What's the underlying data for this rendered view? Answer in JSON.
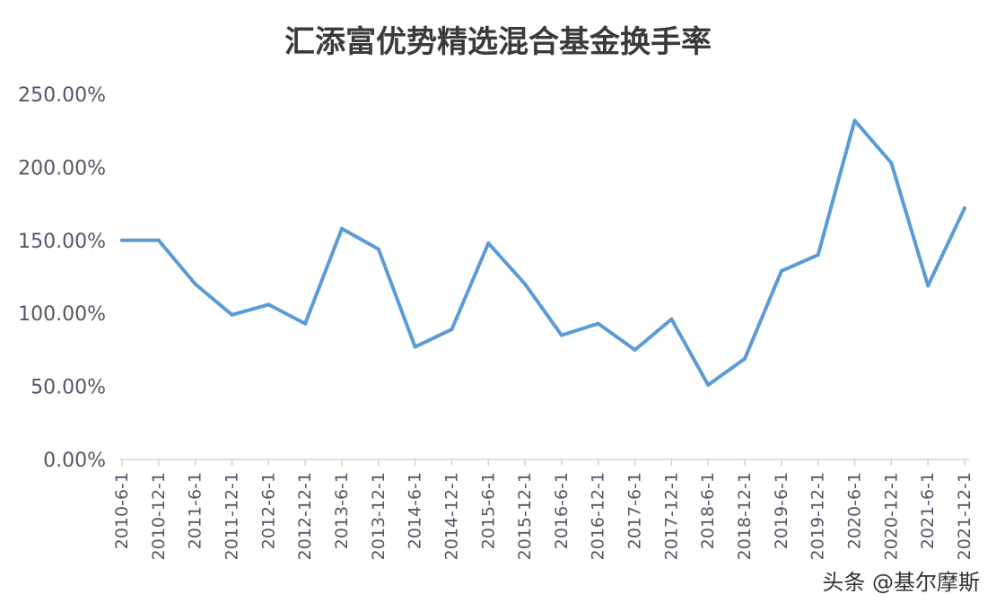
{
  "watermark": "头条 @基尔摩斯",
  "chart_data": {
    "type": "line",
    "title": "汇添富优势精选混合基金换手率",
    "xlabel": "",
    "ylabel": "",
    "ylim": [
      0,
      250
    ],
    "yticks": [
      0,
      50,
      100,
      150,
      200,
      250
    ],
    "ytick_labels": [
      "0.00%",
      "50.00%",
      "100.00%",
      "150.00%",
      "200.00%",
      "250.00%"
    ],
    "categories": [
      "2010-6-1",
      "2010-12-1",
      "2011-6-1",
      "2011-12-1",
      "2012-6-1",
      "2012-12-1",
      "2013-6-1",
      "2013-12-1",
      "2014-6-1",
      "2014-12-1",
      "2015-6-1",
      "2015-12-1",
      "2016-6-1",
      "2016-12-1",
      "2017-6-1",
      "2017-12-1",
      "2018-6-1",
      "2018-12-1",
      "2019-6-1",
      "2019-12-1",
      "2020-6-1",
      "2020-12-1",
      "2021-6-1",
      "2021-12-1"
    ],
    "series": [
      {
        "color": "#5b9bd5",
        "values": [
          150,
          150,
          120,
          99,
          106,
          93,
          158,
          144,
          77,
          89,
          148,
          120,
          85,
          93,
          75,
          96,
          51,
          69,
          129,
          140,
          232,
          203,
          119,
          172
        ]
      }
    ],
    "grid": false,
    "legend": "none",
    "colors": {
      "axis": "#d0d0d8",
      "text": "#55556a",
      "title": "#3a3a3a"
    }
  }
}
